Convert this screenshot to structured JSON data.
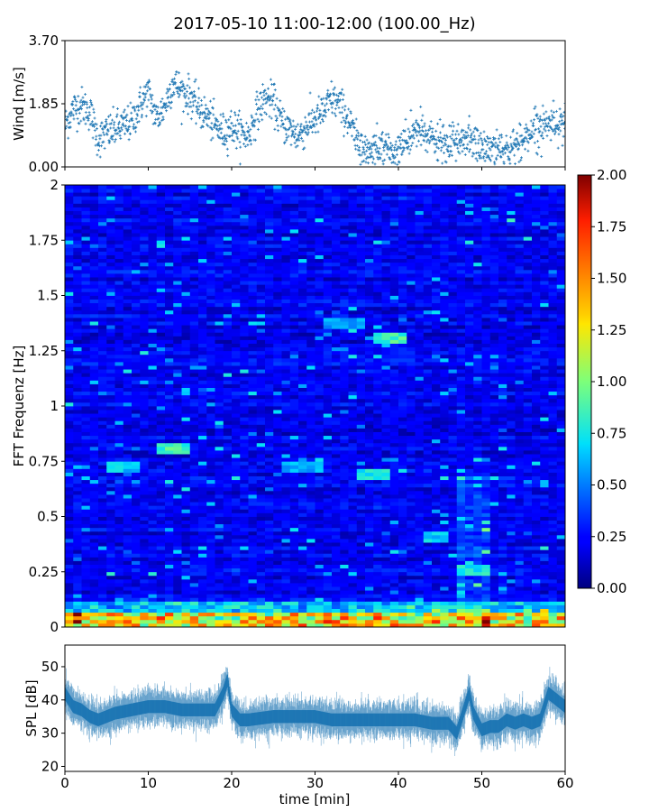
{
  "title": "2017-05-10 11:00-12:00 (100.00_Hz)",
  "chart_data": [
    {
      "id": "wind",
      "type": "scatter",
      "title": "",
      "xlabel": "",
      "ylabel": "Wind [m/s]",
      "xlim": [
        0,
        60
      ],
      "ylim": [
        0,
        3.7
      ],
      "yticks": [
        "0.00",
        "1.85",
        "3.70"
      ],
      "xticks": [
        0,
        10,
        20,
        30,
        40,
        50,
        60
      ],
      "grid": false,
      "marker_color": "#1f77b4",
      "trend": {
        "x": [
          0,
          1,
          2,
          3,
          4,
          5,
          6,
          7,
          8,
          9,
          10,
          11,
          12,
          13,
          14,
          15,
          16,
          17,
          18,
          19,
          20,
          21,
          22,
          23,
          24,
          25,
          26,
          27,
          28,
          29,
          30,
          31,
          32,
          33,
          34,
          35,
          36,
          37,
          38,
          39,
          40,
          41,
          42,
          43,
          44,
          45,
          46,
          47,
          48,
          49,
          50,
          51,
          52,
          53,
          54,
          55,
          56,
          57,
          58,
          59,
          60
        ],
        "y": [
          1.2,
          1.7,
          1.8,
          1.6,
          0.8,
          1.0,
          1.1,
          1.2,
          1.3,
          1.8,
          2.2,
          1.4,
          1.8,
          2.5,
          2.2,
          2.1,
          1.7,
          1.5,
          1.2,
          1.0,
          1.2,
          1.0,
          0.9,
          1.6,
          2.0,
          1.9,
          1.3,
          1.1,
          0.9,
          1.2,
          1.4,
          1.6,
          2.0,
          1.8,
          1.4,
          0.7,
          0.5,
          0.6,
          0.6,
          0.4,
          0.5,
          0.7,
          1.1,
          1.0,
          0.8,
          0.7,
          0.6,
          0.7,
          0.9,
          0.7,
          0.6,
          0.5,
          0.7,
          0.5,
          0.6,
          0.8,
          1.1,
          1.2,
          1.3,
          1.3,
          1.4
        ]
      },
      "spread": 0.45
    },
    {
      "id": "spectrogram",
      "type": "heatmap",
      "title": "",
      "xlabel": "",
      "ylabel": "FFT Frequenz [Hz]",
      "xlim": [
        0,
        60
      ],
      "ylim": [
        0,
        2
      ],
      "yticks": [
        "0",
        "0.25",
        "0.5",
        "0.75",
        "1",
        "1.25",
        "1.5",
        "1.75",
        "2"
      ],
      "colormap": "jet",
      "colorbar": {
        "range": [
          0,
          2
        ],
        "ticks": [
          "0.00",
          "0.25",
          "0.50",
          "0.75",
          "1.00",
          "1.25",
          "1.50",
          "1.75",
          "2.00"
        ]
      },
      "typical_value": 0.22,
      "bright_features": [
        {
          "t": [
            11.5,
            15.5
          ],
          "f": 0.8,
          "value": 0.9
        },
        {
          "t": [
            5,
            9
          ],
          "f": 0.72,
          "value": 0.7
        },
        {
          "t": [
            26,
            31
          ],
          "f": 0.73,
          "value": 0.65
        },
        {
          "t": [
            35,
            39
          ],
          "f": 0.69,
          "value": 0.8
        },
        {
          "t": [
            37,
            41
          ],
          "f": 1.3,
          "value": 0.9
        },
        {
          "t": [
            31,
            36
          ],
          "f": 1.38,
          "value": 0.6
        },
        {
          "t": [
            43,
            46
          ],
          "f": 0.41,
          "value": 0.7
        },
        {
          "t": [
            47,
            51
          ],
          "f": 0.26,
          "value": 0.8
        }
      ]
    },
    {
      "id": "spl",
      "type": "line",
      "title": "",
      "xlabel": "time [min]",
      "ylabel": "SPL [dB]",
      "xlim": [
        0,
        60
      ],
      "ylim": [
        18.5,
        56.5
      ],
      "yticks": [
        20,
        30,
        40,
        50
      ],
      "xticks": [
        0,
        10,
        20,
        30,
        40,
        50,
        60
      ],
      "grid": false,
      "line_color": "#1f77b4",
      "trend": {
        "x": [
          0,
          1,
          2,
          3,
          4,
          5,
          6,
          8,
          10,
          12,
          14,
          16,
          18,
          19,
          19.5,
          20,
          21,
          22,
          25,
          28,
          30,
          32,
          34,
          36,
          38,
          40,
          42,
          44,
          46,
          47,
          48,
          48.5,
          49,
          50,
          51,
          52,
          53,
          54,
          55,
          56,
          57,
          58,
          59,
          60
        ],
        "y": [
          42,
          38,
          37,
          35,
          34,
          35,
          36,
          37,
          38,
          38,
          37,
          37,
          37,
          42,
          46,
          37,
          34,
          34,
          35,
          35,
          35,
          34,
          34,
          34,
          34,
          34,
          34,
          33,
          33,
          30,
          38,
          42,
          36,
          31,
          32,
          32,
          34,
          33,
          34,
          33,
          34,
          42,
          40,
          38
        ]
      },
      "spread": 3.2
    }
  ]
}
